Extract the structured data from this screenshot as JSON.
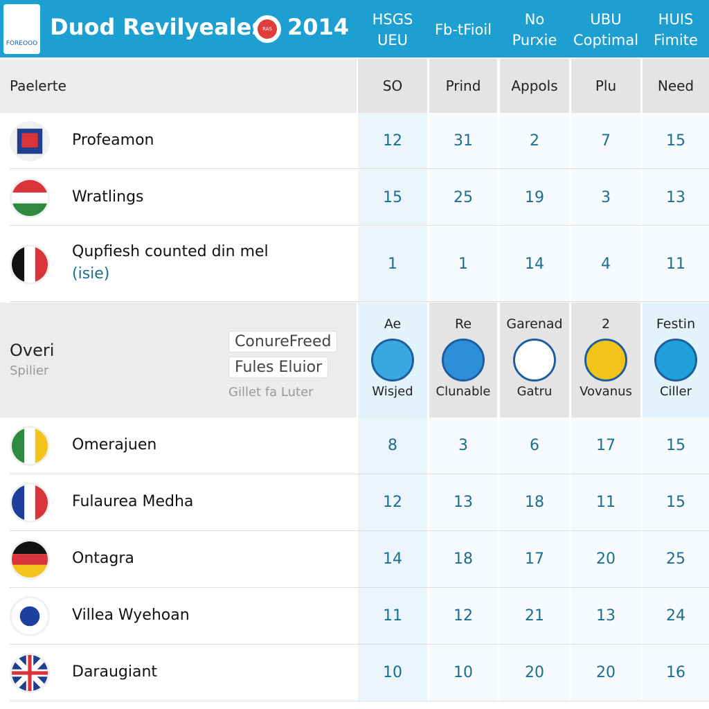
{
  "header": {
    "logo": "FOREOOO",
    "title": "Duod Revilyeales",
    "badge": "RAS",
    "year": "2014",
    "columns": [
      [
        "HSGS",
        "UEU"
      ],
      [
        "Fb-tFioil"
      ],
      [
        "No",
        "Purxie"
      ],
      [
        "UBU",
        "Coptimal"
      ],
      [
        "HUIS",
        "Fimite"
      ]
    ]
  },
  "subheader": {
    "label": "Paelerte",
    "columns": [
      "SO",
      "Prind",
      "Appols",
      "Plu",
      "Need"
    ]
  },
  "rows_top": [
    {
      "name": "Profeamon",
      "values": [
        "12",
        "31",
        "2",
        "7",
        "15"
      ]
    },
    {
      "name": "Wratlings",
      "values": [
        "15",
        "25",
        "19",
        "3",
        "13"
      ]
    },
    {
      "name": "Qupfiesh counted din mel",
      "note": "(isie)",
      "values": [
        "1",
        "1",
        "14",
        "4",
        "11"
      ]
    }
  ],
  "middle": {
    "title": "Overi",
    "subtitle": "Spilier",
    "buttons": [
      "ConureFreed",
      "Fules Eluior"
    ],
    "link": "Gillet fa Luter",
    "columns": [
      {
        "top": "Ae",
        "bottom": "Wisjed"
      },
      {
        "top": "Re",
        "bottom": "Clunable"
      },
      {
        "top": "Garenad",
        "bottom": "Gatru"
      },
      {
        "top": "2",
        "bottom": "Vovanus"
      },
      {
        "top": "Festin",
        "bottom": "Ciller"
      }
    ]
  },
  "rows_bottom": [
    {
      "name": "Omerajuen",
      "values": [
        "8",
        "3",
        "6",
        "17",
        "15"
      ]
    },
    {
      "name": "Fulaurea Medha",
      "values": [
        "12",
        "13",
        "18",
        "11",
        "15"
      ]
    },
    {
      "name": "Ontagra",
      "values": [
        "14",
        "18",
        "17",
        "20",
        "25"
      ]
    },
    {
      "name": "Villea Wyehoan",
      "values": [
        "11",
        "12",
        "21",
        "13",
        "24"
      ]
    },
    {
      "name": "Daraugiant",
      "values": [
        "10",
        "10",
        "20",
        "20",
        "16"
      ]
    }
  ]
}
